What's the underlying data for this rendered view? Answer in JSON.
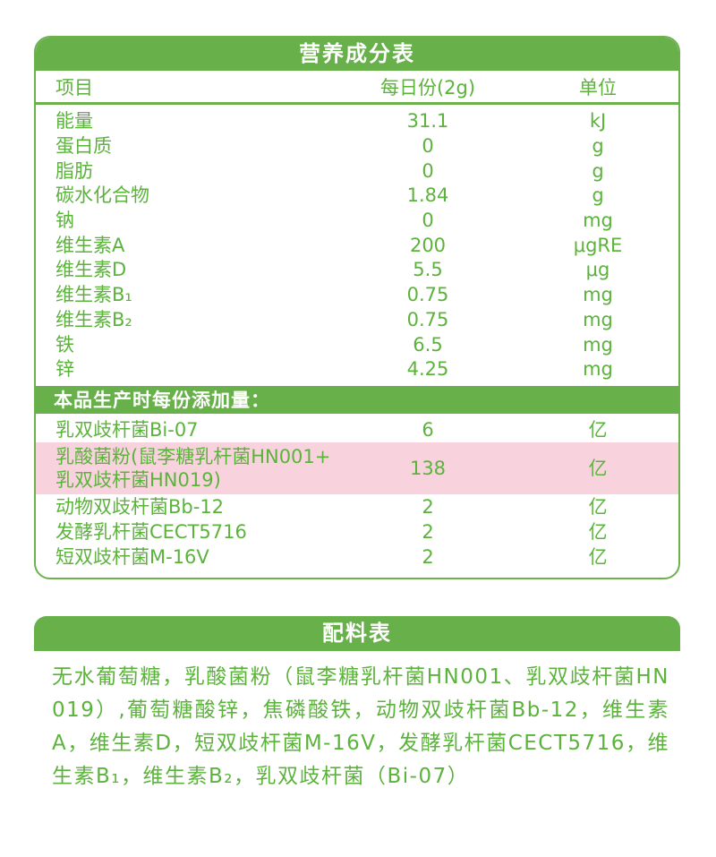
{
  "colors": {
    "green_fill": "#68b04a",
    "green_text": "#5cb33c",
    "green_border": "#6cb14e",
    "pink_highlight": "#f8d3de",
    "white": "#ffffff"
  },
  "nutrition_table": {
    "title": "营养成分表",
    "columns": {
      "item": "项目",
      "per_serving": "每日份(2g)",
      "unit": "单位"
    },
    "rows": [
      {
        "item": "能量",
        "value": "31.1",
        "unit": "kJ"
      },
      {
        "item": "蛋白质",
        "value": "0",
        "unit": "g"
      },
      {
        "item": "脂肪",
        "value": "0",
        "unit": "g"
      },
      {
        "item": "碳水化合物",
        "value": "1.84",
        "unit": "g"
      },
      {
        "item": "钠",
        "value": "0",
        "unit": "mg"
      },
      {
        "item": "维生素A",
        "value": "200",
        "unit": "μgRE"
      },
      {
        "item": "维生素D",
        "value": "5.5",
        "unit": "μg"
      },
      {
        "item": "维生素B₁",
        "value": "0.75",
        "unit": "mg"
      },
      {
        "item": "维生素B₂",
        "value": "0.75",
        "unit": "mg"
      },
      {
        "item": "铁",
        "value": "6.5",
        "unit": "mg"
      },
      {
        "item": "锌",
        "value": "4.25",
        "unit": "mg"
      }
    ],
    "additives": {
      "header": "本品生产时每份添加量：",
      "rows": [
        {
          "item": "乳双歧杆菌Bi-07",
          "value": "6",
          "unit": "亿",
          "highlight": false
        },
        {
          "item": "乳酸菌粉(鼠李糖乳杆菌HN001+\n乳双歧杆菌HN019)",
          "value": "138",
          "unit": "亿",
          "highlight": true
        },
        {
          "item": "动物双歧杆菌Bb-12",
          "value": "2",
          "unit": "亿",
          "highlight": false
        },
        {
          "item": "发酵乳杆菌CECT5716",
          "value": "2",
          "unit": "亿",
          "highlight": false
        },
        {
          "item": "短双歧杆菌M-16V",
          "value": "2",
          "unit": "亿",
          "highlight": false
        }
      ]
    }
  },
  "ingredients": {
    "title": "配料表",
    "text": "无水葡萄糖，乳酸菌粉（鼠李糖乳杆菌HN001、乳双歧杆菌HN019）,葡萄糖酸锌，焦磷酸铁，动物双歧杆菌Bb-12，维生素A，维生素D，短双歧杆菌M-16V，发酵乳杆菌CECT5716，维生素B₁，维生素B₂，乳双歧杆菌（Bi-07）"
  }
}
